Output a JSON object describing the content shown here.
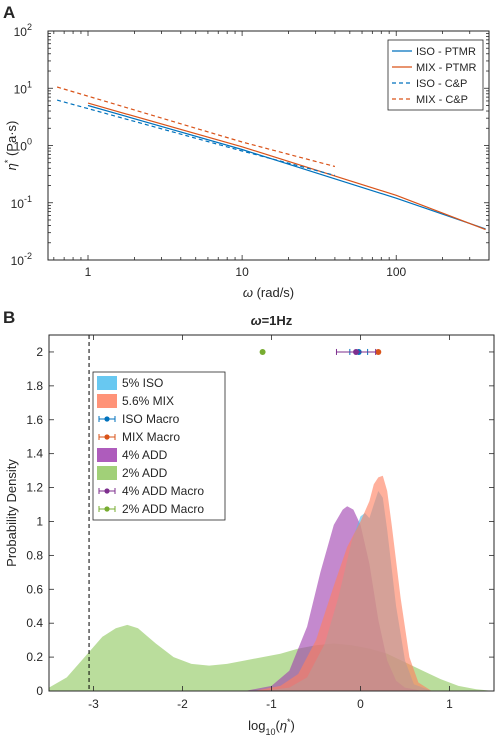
{
  "colors": {
    "iso": "#0072BD",
    "mix": "#D95319",
    "iso_fill": "#4DBEEE",
    "mix_fill": "#FF8060",
    "add4": "#7E2F8E",
    "add4_fill": "#A040B0",
    "add2": "#77AC30",
    "add2_fill": "#90C860"
  },
  "chart_data": [
    {
      "panel_label": "A",
      "type": "line",
      "xscale": "log",
      "yscale": "log",
      "xlim": [
        0.55,
        400
      ],
      "ylim": [
        0.01,
        100
      ],
      "xlabel_symbol": "ω",
      "xlabel_unit": " (rad/s)",
      "ylabel_symbol": "η",
      "ylabel_sup": "*",
      "ylabel_unit": " (Pa·s)",
      "xticks": [
        1,
        10,
        100
      ],
      "xtick_labels": [
        "1",
        "10",
        "100"
      ],
      "yticks": [
        0.01,
        0.1,
        1,
        10,
        100
      ],
      "ytick_labels": [
        [
          "10",
          "-2"
        ],
        [
          "10",
          "-1"
        ],
        [
          "10",
          "0"
        ],
        [
          "10",
          "1"
        ],
        [
          "10",
          "2"
        ]
      ],
      "legend_position": "top-right",
      "series": [
        {
          "name": "ISO - PTMR",
          "color": "#0072BD",
          "dash": "solid",
          "x": [
            1.0,
            10,
            100,
            380
          ],
          "y": [
            5.0,
            0.85,
            0.12,
            0.035
          ]
        },
        {
          "name": "MIX - PTMR",
          "color": "#D95319",
          "dash": "solid",
          "x": [
            1.0,
            10,
            100,
            380
          ],
          "y": [
            5.5,
            0.95,
            0.135,
            0.034
          ]
        },
        {
          "name": "ISO - C&P",
          "color": "#0072BD",
          "dash": "dashed",
          "x": [
            0.63,
            10,
            40
          ],
          "y": [
            6.2,
            0.8,
            0.3
          ]
        },
        {
          "name": "MIX - C&P",
          "color": "#D95319",
          "dash": "dashed",
          "x": [
            0.63,
            10,
            40
          ],
          "y": [
            10.5,
            1.15,
            0.43
          ]
        }
      ]
    },
    {
      "panel_label": "B",
      "type": "area",
      "title_symbol": "ω",
      "title_text": "=1Hz",
      "xlim": [
        -3.5,
        1.5
      ],
      "ylim": [
        0,
        2.1
      ],
      "xlabel_prefix": "log",
      "xlabel_sub": "10",
      "xlabel_open": "(",
      "xlabel_symbol": "η",
      "xlabel_sup": "*",
      "xlabel_close": ")",
      "ylabel": "Probability Density",
      "xticks": [
        -3,
        -2,
        -1,
        0,
        1
      ],
      "xtick_labels": [
        "-3",
        "-2",
        "-1",
        "0",
        "1"
      ],
      "yticks": [
        0,
        0.2,
        0.4,
        0.6,
        0.8,
        1,
        1.2,
        1.4,
        1.6,
        1.8,
        2
      ],
      "ytick_labels": [
        "0",
        "0.2",
        "0.4",
        "0.6",
        "0.8",
        "1",
        "1.2",
        "1.4",
        "1.6",
        "1.8",
        "2"
      ],
      "vline_x": -3.05,
      "legend_position": "top-left",
      "densities": [
        {
          "name": "2% ADD",
          "color": "#90C860",
          "x": [
            -3.5,
            -3.3,
            -3.1,
            -2.9,
            -2.75,
            -2.62,
            -2.5,
            -2.3,
            -2.1,
            -1.9,
            -1.7,
            -1.5,
            -1.3,
            -1.1,
            -0.9,
            -0.7,
            -0.5,
            -0.3,
            -0.1,
            0.1,
            0.3,
            0.5,
            0.7,
            0.9,
            1.1,
            1.3,
            1.5
          ],
          "y": [
            0.02,
            0.08,
            0.2,
            0.32,
            0.37,
            0.39,
            0.37,
            0.28,
            0.2,
            0.16,
            0.15,
            0.16,
            0.18,
            0.2,
            0.22,
            0.25,
            0.27,
            0.28,
            0.27,
            0.25,
            0.22,
            0.17,
            0.12,
            0.07,
            0.03,
            0.01,
            0.0
          ]
        },
        {
          "name": "4% ADD",
          "color": "#A040B0",
          "x": [
            -1.3,
            -1.0,
            -0.8,
            -0.6,
            -0.45,
            -0.3,
            -0.2,
            -0.15,
            -0.08,
            0.0,
            0.1,
            0.2,
            0.3,
            0.4,
            0.5,
            0.7
          ],
          "y": [
            0.0,
            0.03,
            0.12,
            0.38,
            0.7,
            0.98,
            1.07,
            1.09,
            1.07,
            0.98,
            0.75,
            0.42,
            0.18,
            0.06,
            0.02,
            0.0
          ]
        },
        {
          "name": "5% ISO",
          "color": "#4DBEEE",
          "x": [
            -1.1,
            -0.8,
            -0.6,
            -0.4,
            -0.25,
            -0.1,
            0.0,
            0.05,
            0.1,
            0.15,
            0.2,
            0.25,
            0.3,
            0.4,
            0.5,
            0.6,
            0.8
          ],
          "y": [
            0.0,
            0.02,
            0.08,
            0.28,
            0.55,
            0.88,
            1.03,
            1.05,
            1.02,
            1.1,
            1.18,
            1.14,
            0.95,
            0.5,
            0.18,
            0.04,
            0.0
          ]
        },
        {
          "name": "5.6% MIX",
          "color": "#FF8060",
          "x": [
            -1.2,
            -0.9,
            -0.7,
            -0.5,
            -0.3,
            -0.15,
            0.0,
            0.1,
            0.15,
            0.2,
            0.25,
            0.3,
            0.35,
            0.45,
            0.55,
            0.65,
            0.8
          ],
          "y": [
            0.0,
            0.03,
            0.1,
            0.3,
            0.62,
            0.85,
            1.0,
            1.12,
            1.22,
            1.26,
            1.27,
            1.18,
            0.98,
            0.55,
            0.2,
            0.05,
            0.0
          ]
        }
      ],
      "macro_points": [
        {
          "name": "ISO Macro",
          "color": "#0072BD",
          "x": -0.02,
          "y": 2,
          "xerr": 0.1
        },
        {
          "name": "MIX Macro",
          "color": "#D95319",
          "x": 0.2,
          "y": 2,
          "xerr": 0.0
        },
        {
          "name": "4% ADD Macro",
          "color": "#7E2F8E",
          "x": -0.05,
          "y": 2,
          "xerr": 0.22
        },
        {
          "name": "2% ADD Macro",
          "color": "#77AC30",
          "x": -1.1,
          "y": 2,
          "xerr": 0.0
        }
      ],
      "legend_entries": [
        {
          "label": "5% ISO",
          "kind": "patch",
          "color": "#4DBEEE"
        },
        {
          "label": "5.6% MIX",
          "kind": "patch",
          "color": "#FF8060"
        },
        {
          "label": "ISO Macro",
          "kind": "errbar",
          "color": "#0072BD"
        },
        {
          "label": "MIX Macro",
          "kind": "errbar",
          "color": "#D95319"
        },
        {
          "label": "4% ADD",
          "kind": "patch",
          "color": "#A040B0"
        },
        {
          "label": "2% ADD",
          "kind": "patch",
          "color": "#90C860"
        },
        {
          "label": "4% ADD Macro",
          "kind": "errbar",
          "color": "#7E2F8E"
        },
        {
          "label": "2% ADD Macro",
          "kind": "errbar",
          "color": "#77AC30"
        }
      ]
    }
  ]
}
